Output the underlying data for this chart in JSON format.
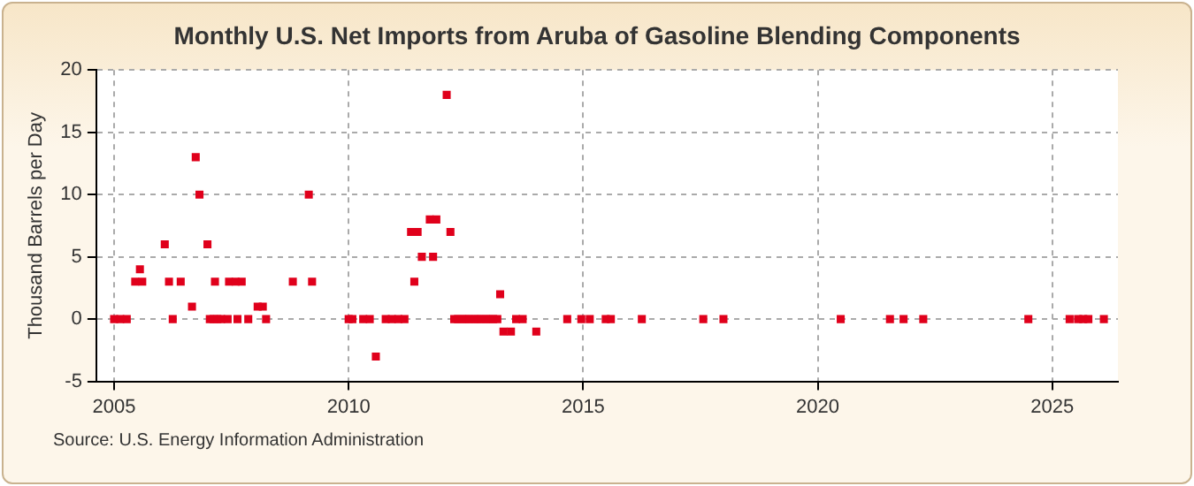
{
  "chart_data": {
    "type": "scatter",
    "title": "Monthly U.S. Net Imports from Aruba of Gasoline Blending Components",
    "ylabel": "Thousand Barrels per Day",
    "x": [
      2005.0,
      2005.13,
      2005.27,
      2005.45,
      2005.55,
      2005.6,
      2006.08,
      2006.17,
      2006.25,
      2006.42,
      2006.66,
      2006.74,
      2006.82,
      2006.99,
      2007.04,
      2007.12,
      2007.15,
      2007.2,
      2007.28,
      2007.42,
      2007.45,
      2007.59,
      2007.63,
      2007.72,
      2007.86,
      2008.06,
      2008.17,
      2008.24,
      2008.81,
      2009.15,
      2009.22,
      2010.0,
      2010.08,
      2010.31,
      2010.45,
      2010.58,
      2010.79,
      2010.92,
      2011.06,
      2011.19,
      2011.33,
      2011.4,
      2011.47,
      2011.56,
      2011.73,
      2011.8,
      2011.87,
      2012.09,
      2012.17,
      2012.25,
      2012.33,
      2012.42,
      2012.5,
      2012.58,
      2012.67,
      2012.75,
      2012.83,
      2012.92,
      2013.0,
      2013.08,
      2013.17,
      2013.23,
      2013.3,
      2013.46,
      2013.57,
      2013.71,
      2014.0,
      2014.66,
      2014.96,
      2015.14,
      2015.48,
      2015.59,
      2016.25,
      2017.56,
      2017.99,
      2020.49,
      2021.54,
      2021.83,
      2022.25,
      2024.49,
      2025.37,
      2025.55,
      2025.66,
      2025.77,
      2026.1
    ],
    "values": [
      0,
      0,
      0,
      3,
      4,
      3,
      6,
      3,
      0,
      3,
      1,
      13,
      10,
      6,
      0,
      0,
      3,
      0,
      0,
      0,
      3,
      3,
      0,
      3,
      0,
      1,
      1,
      0,
      3,
      10,
      3,
      0,
      0,
      0,
      0,
      -3,
      0,
      0,
      0,
      0,
      7,
      3,
      7,
      5,
      8,
      5,
      8,
      18,
      7,
      0,
      0,
      0,
      0,
      0,
      0,
      0,
      0,
      0,
      0,
      0,
      0,
      2,
      -1,
      -1,
      0,
      0,
      -1,
      0,
      0,
      0,
      0,
      0,
      0,
      0,
      0,
      0,
      0,
      0,
      0,
      0,
      0,
      0,
      0,
      0,
      0
    ],
    "color": "#e0001b",
    "marker": "square",
    "xlim": [
      2004.62,
      2026.4
    ],
    "xticks": [
      2005,
      2010,
      2015,
      2020,
      2025
    ],
    "ylim": [
      -5,
      20
    ],
    "yticks": [
      -5,
      0,
      5,
      10,
      15,
      20
    ],
    "grid": true,
    "annotations": [
      "Source: U.S. Energy Information Administration"
    ]
  }
}
